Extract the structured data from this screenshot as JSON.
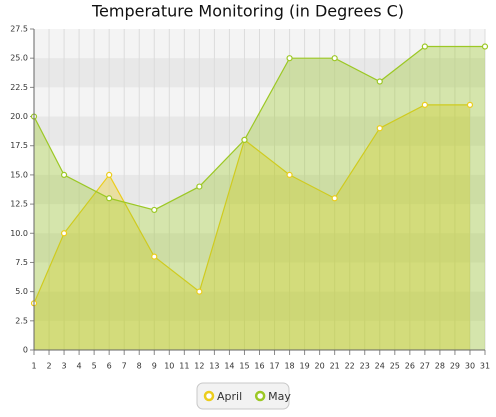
{
  "chart_data": {
    "type": "area",
    "title": "Temperature Monitoring (in Degrees C)",
    "xlim": [
      1,
      31
    ],
    "xticks": [
      1,
      2,
      3,
      4,
      5,
      6,
      7,
      8,
      9,
      10,
      11,
      12,
      13,
      14,
      15,
      16,
      17,
      18,
      19,
      20,
      21,
      22,
      23,
      24,
      25,
      26,
      27,
      28,
      29,
      30,
      31
    ],
    "ylim": [
      0,
      27.5
    ],
    "yticks": [
      0,
      2.5,
      {
        "value": 5,
        "label": "5.0"
      },
      7.5,
      {
        "value": 10,
        "label": "10.0"
      },
      12.5,
      {
        "value": 15,
        "label": "15.0"
      },
      17.5,
      {
        "value": 20,
        "label": "20.0"
      },
      22.5,
      {
        "value": 25,
        "label": "25.0"
      },
      27.5
    ],
    "grid": true,
    "legend": "bottom",
    "series": [
      {
        "name": "April",
        "color": "#eccd1c",
        "x": [
          1,
          3,
          6,
          9,
          12,
          15,
          18,
          21,
          24,
          27,
          30
        ],
        "values": [
          4,
          10,
          15,
          8,
          5,
          18,
          15,
          13,
          19,
          21,
          21
        ]
      },
      {
        "name": "May",
        "color": "#9cc825",
        "x": [
          1,
          3,
          6,
          9,
          12,
          15,
          18,
          21,
          24,
          27,
          31
        ],
        "values": [
          20,
          15,
          13,
          12,
          14,
          18,
          25,
          25,
          23,
          26,
          26
        ]
      }
    ]
  }
}
